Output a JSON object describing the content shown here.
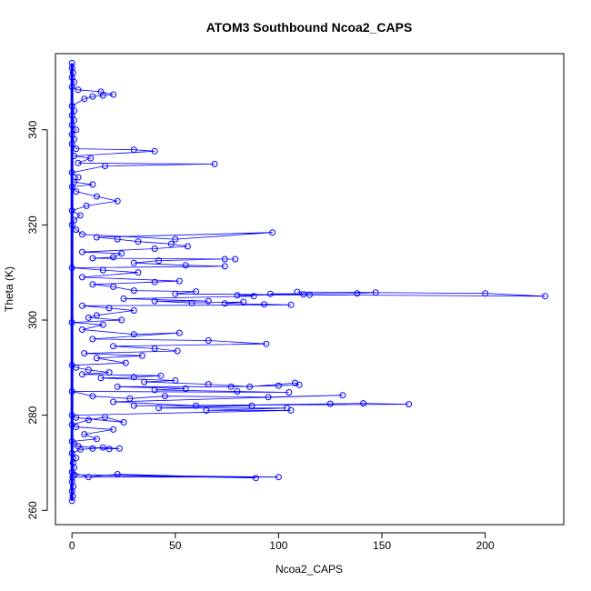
{
  "chart_data": {
    "type": "scatter",
    "title": "ATOM3 Southbound Ncoa2_CAPS",
    "xlabel": "Ncoa2_CAPS",
    "ylabel": "Theta (K)",
    "xlim": [
      -8,
      238
    ],
    "ylim": [
      257,
      356
    ],
    "xticks": [
      0,
      50,
      100,
      150,
      200
    ],
    "yticks": [
      260,
      280,
      300,
      320,
      340
    ],
    "grid": false,
    "legend": "none",
    "marker": "open-circle",
    "connect_points": true,
    "color": "#0000ff",
    "points": [
      [
        0,
        262
      ],
      [
        0.4,
        263
      ],
      [
        0,
        264
      ],
      [
        0.6,
        265
      ],
      [
        0,
        266
      ],
      [
        0.3,
        267
      ],
      [
        100,
        267
      ],
      [
        1,
        267.5
      ],
      [
        89,
        266.8
      ],
      [
        22,
        267.6
      ],
      [
        8,
        267
      ],
      [
        0,
        268
      ],
      [
        1,
        269
      ],
      [
        0.5,
        270
      ],
      [
        2,
        271
      ],
      [
        0,
        272
      ],
      [
        4,
        272.8
      ],
      [
        10,
        273
      ],
      [
        15,
        273.2
      ],
      [
        23,
        273
      ],
      [
        18,
        272.9
      ],
      [
        3,
        273.5
      ],
      [
        1,
        274
      ],
      [
        0,
        274.5
      ],
      [
        12,
        275
      ],
      [
        6,
        276
      ],
      [
        20,
        277
      ],
      [
        2,
        277.5
      ],
      [
        0,
        278
      ],
      [
        8,
        279
      ],
      [
        16,
        279.6
      ],
      [
        25,
        278.5
      ],
      [
        2,
        279.5
      ],
      [
        0,
        280
      ],
      [
        106,
        281
      ],
      [
        65,
        281
      ],
      [
        104,
        281.5
      ],
      [
        42,
        281.5
      ],
      [
        87,
        282
      ],
      [
        30,
        282
      ],
      [
        163,
        282.3
      ],
      [
        141,
        282.5
      ],
      [
        125,
        282.4
      ],
      [
        60,
        282
      ],
      [
        20,
        282.8
      ],
      [
        131,
        284.2
      ],
      [
        95,
        283.8
      ],
      [
        45,
        284
      ],
      [
        28,
        283.5
      ],
      [
        10,
        284
      ],
      [
        0,
        285
      ],
      [
        105,
        284.8
      ],
      [
        80,
        285
      ],
      [
        40,
        285.3
      ],
      [
        55,
        285.6
      ],
      [
        22,
        286
      ],
      [
        77,
        286
      ],
      [
        100,
        286.2
      ],
      [
        110,
        286.4
      ],
      [
        108,
        286.8
      ],
      [
        86,
        286
      ],
      [
        66,
        286.5
      ],
      [
        35,
        287
      ],
      [
        50,
        287.3
      ],
      [
        14,
        287.8
      ],
      [
        30,
        288
      ],
      [
        43,
        288.3
      ],
      [
        5,
        288.6
      ],
      [
        18,
        289
      ],
      [
        8,
        289.5
      ],
      [
        2,
        290
      ],
      [
        0,
        290.5
      ],
      [
        26,
        291
      ],
      [
        12,
        292
      ],
      [
        34,
        292.5
      ],
      [
        6,
        293
      ],
      [
        51,
        293.5
      ],
      [
        40,
        294
      ],
      [
        20,
        294.5
      ],
      [
        94,
        295
      ],
      [
        66,
        295.7
      ],
      [
        10,
        296
      ],
      [
        52,
        297.3
      ],
      [
        30,
        297
      ],
      [
        5,
        298
      ],
      [
        15,
        299
      ],
      [
        0,
        299.5
      ],
      [
        24,
        300
      ],
      [
        8,
        300.5
      ],
      [
        12,
        301
      ],
      [
        30,
        302
      ],
      [
        18,
        302.5
      ],
      [
        5,
        303
      ],
      [
        106,
        303.2
      ],
      [
        93,
        303.3
      ],
      [
        74,
        303.5
      ],
      [
        83,
        303.8
      ],
      [
        58,
        303.6
      ],
      [
        40,
        304
      ],
      [
        66,
        304
      ],
      [
        25,
        304.5
      ],
      [
        88,
        305
      ],
      [
        80,
        305.2
      ],
      [
        112,
        305.4
      ],
      [
        96,
        305.5
      ],
      [
        138,
        305.6
      ],
      [
        147,
        305.8
      ],
      [
        109,
        305.9
      ],
      [
        200,
        305.6
      ],
      [
        229,
        305
      ],
      [
        115,
        305.3
      ],
      [
        50,
        305.5
      ],
      [
        60,
        306
      ],
      [
        30,
        306.2
      ],
      [
        20,
        307
      ],
      [
        10,
        307.5
      ],
      [
        40,
        308
      ],
      [
        52,
        308.2
      ],
      [
        5,
        309
      ],
      [
        32,
        310
      ],
      [
        15,
        310.5
      ],
      [
        0,
        311
      ],
      [
        74,
        311.3
      ],
      [
        55,
        311.5
      ],
      [
        30,
        312
      ],
      [
        42,
        312.5
      ],
      [
        74,
        312.8
      ],
      [
        79,
        312.8
      ],
      [
        10,
        313
      ],
      [
        20,
        313.2
      ],
      [
        24,
        314
      ],
      [
        5,
        314.3
      ],
      [
        40,
        315
      ],
      [
        56,
        315.5
      ],
      [
        48,
        316
      ],
      [
        32,
        316.5
      ],
      [
        22,
        317
      ],
      [
        12,
        317.4
      ],
      [
        97,
        318.4
      ],
      [
        50,
        317
      ],
      [
        5,
        318
      ],
      [
        2,
        319
      ],
      [
        0,
        320
      ],
      [
        1,
        321
      ],
      [
        4,
        322
      ],
      [
        0,
        323
      ],
      [
        7,
        324
      ],
      [
        22,
        325
      ],
      [
        12,
        326
      ],
      [
        2,
        327
      ],
      [
        0,
        328
      ],
      [
        10,
        328.5
      ],
      [
        1,
        329
      ],
      [
        3,
        330
      ],
      [
        0,
        331
      ],
      [
        16,
        332.4
      ],
      [
        69,
        332.8
      ],
      [
        3,
        333
      ],
      [
        9,
        334
      ],
      [
        1,
        334.5
      ],
      [
        40,
        335.5
      ],
      [
        30,
        335.8
      ],
      [
        2,
        336
      ],
      [
        0,
        337
      ],
      [
        1,
        338
      ],
      [
        0,
        339
      ],
      [
        2,
        340
      ],
      [
        0,
        341
      ],
      [
        1,
        342
      ],
      [
        0,
        343
      ],
      [
        1,
        344
      ],
      [
        0,
        345
      ],
      [
        6,
        346.5
      ],
      [
        10,
        347
      ],
      [
        15,
        347.2
      ],
      [
        20,
        347.4
      ],
      [
        14,
        348
      ],
      [
        3,
        348.4
      ],
      [
        0,
        349
      ],
      [
        1,
        350
      ],
      [
        0,
        351
      ],
      [
        0.5,
        352
      ],
      [
        0,
        353
      ],
      [
        0,
        354
      ]
    ]
  }
}
